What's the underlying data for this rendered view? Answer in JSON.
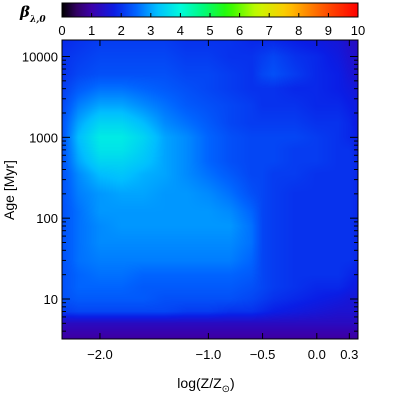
{
  "chart_data": {
    "type": "heatmap",
    "colormap": "rainbow",
    "colorbar": {
      "title": "β",
      "title_subscript": "λ,0",
      "range": [
        0,
        10
      ],
      "ticks": [
        "0",
        "1",
        "2",
        "3",
        "4",
        "5",
        "6",
        "7",
        "8",
        "9",
        "10"
      ],
      "placement": "top"
    },
    "x_axis": {
      "label_main": "log(Z/Z",
      "label_sub": "⊙",
      "label_close": ")",
      "range": [
        -2.35,
        0.38
      ],
      "ticks": [
        {
          "value": -2.0,
          "label": "−2.0"
        },
        {
          "value": -1.0,
          "label": "−1.0"
        },
        {
          "value": -0.5,
          "label": "−0.5"
        },
        {
          "value": 0.0,
          "label": "0.0"
        },
        {
          "value": 0.3,
          "label": "0.3"
        }
      ]
    },
    "y_axis": {
      "label": "Age [Myr]",
      "scale": "log",
      "range": [
        3.2,
        16000
      ],
      "ticks": [
        {
          "value": 10,
          "label": "10"
        },
        {
          "value": 100,
          "label": "100"
        },
        {
          "value": 1000,
          "label": "1000"
        },
        {
          "value": 10000,
          "label": "10000"
        }
      ]
    },
    "x": [
      -2.35,
      -2.2,
      -2.0,
      -1.8,
      -1.6,
      -1.4,
      -1.2,
      -1.0,
      -0.8,
      -0.6,
      -0.5,
      -0.4,
      -0.2,
      0.0,
      0.2,
      0.3,
      0.38
    ],
    "y": [
      3.2,
      5,
      7,
      10,
      14,
      20,
      30,
      50,
      80,
      120,
      200,
      350,
      500,
      700,
      1000,
      1500,
      2500,
      4000,
      6000,
      10000,
      16000
    ],
    "z": [
      [
        0.9,
        0.9,
        0.9,
        0.9,
        0.9,
        0.9,
        0.9,
        0.9,
        0.9,
        0.9,
        0.9,
        0.9,
        0.9,
        0.9,
        0.9,
        0.9,
        0.9
      ],
      [
        1.3,
        1.3,
        1.3,
        1.3,
        1.3,
        1.3,
        1.3,
        1.3,
        1.3,
        1.3,
        1.3,
        1.3,
        1.3,
        1.3,
        1.3,
        1.3,
        1.3
      ],
      [
        2.1,
        2.2,
        2.2,
        2.2,
        2.2,
        2.2,
        2.1,
        2.1,
        2.0,
        2.0,
        1.9,
        1.8,
        1.7,
        1.6,
        1.5,
        1.5,
        1.5
      ],
      [
        2.3,
        2.4,
        2.4,
        2.4,
        2.4,
        2.3,
        2.3,
        2.3,
        2.3,
        2.2,
        2.1,
        2.0,
        1.9,
        1.8,
        1.7,
        1.6,
        1.6
      ],
      [
        2.3,
        2.5,
        2.5,
        2.5,
        2.4,
        2.4,
        2.4,
        2.4,
        2.4,
        2.3,
        2.2,
        2.1,
        2.0,
        1.9,
        1.9,
        1.8,
        1.7
      ],
      [
        2.3,
        2.5,
        2.6,
        2.6,
        2.5,
        2.5,
        2.5,
        2.5,
        2.5,
        2.4,
        2.2,
        2.1,
        2.0,
        2.0,
        2.0,
        1.9,
        1.8
      ],
      [
        2.3,
        2.6,
        2.7,
        2.7,
        2.7,
        2.7,
        2.7,
        2.7,
        2.7,
        2.5,
        2.2,
        2.1,
        2.0,
        2.0,
        2.0,
        2.0,
        1.9
      ],
      [
        2.3,
        2.6,
        2.8,
        2.8,
        2.8,
        2.8,
        2.8,
        2.8,
        2.8,
        2.6,
        2.2,
        2.1,
        2.0,
        2.0,
        2.0,
        2.0,
        1.9
      ],
      [
        2.3,
        2.6,
        2.8,
        2.9,
        2.9,
        2.9,
        2.9,
        2.9,
        2.9,
        2.6,
        2.2,
        2.1,
        2.0,
        2.0,
        2.0,
        2.0,
        1.9
      ],
      [
        2.3,
        2.6,
        2.9,
        2.9,
        2.9,
        2.9,
        2.9,
        2.9,
        2.8,
        2.5,
        2.2,
        2.1,
        2.0,
        2.0,
        2.0,
        2.0,
        1.9
      ],
      [
        2.3,
        2.7,
        2.9,
        3.0,
        3.0,
        2.9,
        2.9,
        2.8,
        2.6,
        2.3,
        2.2,
        2.1,
        2.0,
        2.0,
        2.0,
        2.0,
        1.9
      ],
      [
        2.3,
        2.8,
        3.2,
        3.3,
        3.1,
        3.0,
        2.8,
        2.6,
        2.4,
        2.2,
        2.2,
        2.1,
        2.1,
        2.0,
        2.0,
        2.0,
        1.9
      ],
      [
        2.3,
        3.0,
        3.5,
        3.5,
        3.3,
        3.0,
        2.8,
        2.5,
        2.3,
        2.2,
        2.2,
        2.2,
        2.1,
        2.1,
        2.0,
        2.0,
        1.9
      ],
      [
        2.3,
        3.1,
        3.7,
        3.7,
        3.4,
        3.0,
        2.8,
        2.5,
        2.3,
        2.2,
        2.2,
        2.2,
        2.1,
        2.1,
        2.0,
        2.0,
        1.8
      ],
      [
        2.3,
        3.2,
        3.8,
        3.8,
        3.5,
        3.0,
        2.8,
        2.5,
        2.3,
        2.2,
        2.2,
        2.2,
        2.2,
        2.1,
        2.0,
        1.9,
        1.8
      ],
      [
        2.3,
        3.0,
        3.5,
        3.5,
        3.2,
        2.8,
        2.6,
        2.4,
        2.2,
        2.1,
        2.1,
        2.1,
        2.1,
        2.0,
        2.0,
        1.9,
        1.7
      ],
      [
        2.2,
        2.7,
        3.0,
        3.0,
        2.8,
        2.6,
        2.4,
        2.3,
        2.2,
        2.1,
        2.0,
        2.0,
        2.0,
        1.9,
        1.9,
        1.8,
        1.7
      ],
      [
        2.1,
        2.4,
        2.6,
        2.6,
        2.5,
        2.4,
        2.3,
        2.2,
        2.1,
        2.0,
        2.0,
        2.0,
        1.9,
        1.9,
        1.8,
        1.7,
        1.6
      ],
      [
        2.0,
        2.2,
        2.3,
        2.3,
        2.3,
        2.3,
        2.2,
        2.2,
        2.1,
        2.0,
        2.2,
        2.3,
        2.1,
        1.9,
        1.8,
        1.6,
        1.5
      ],
      [
        2.0,
        2.1,
        2.2,
        2.2,
        2.2,
        2.2,
        2.1,
        2.1,
        2.0,
        2.0,
        2.1,
        2.2,
        2.0,
        1.9,
        1.7,
        1.5,
        1.4
      ],
      [
        1.9,
        2.0,
        2.1,
        2.1,
        2.1,
        2.1,
        2.0,
        2.0,
        2.0,
        1.9,
        1.9,
        1.9,
        1.8,
        1.7,
        1.6,
        1.4,
        1.3
      ]
    ]
  }
}
